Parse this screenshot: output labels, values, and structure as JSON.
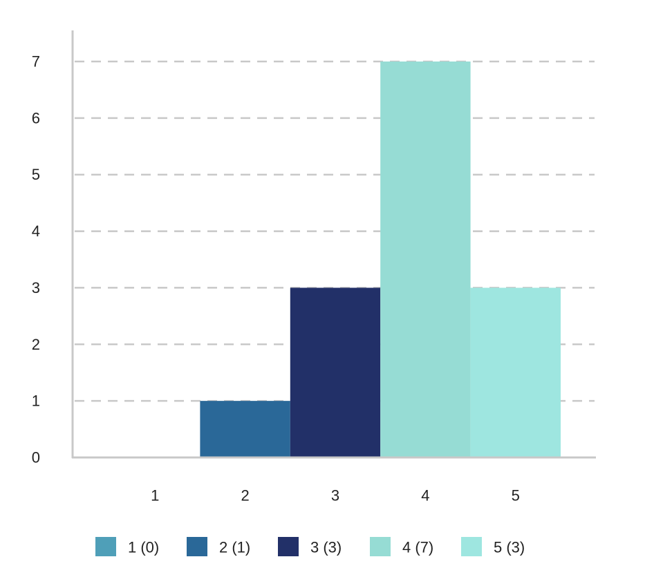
{
  "chart_data": {
    "type": "bar",
    "categories": [
      "1",
      "2",
      "3",
      "4",
      "5"
    ],
    "values": [
      0,
      1,
      3,
      7,
      3
    ],
    "colors": [
      "#4f9fb8",
      "#2a6898",
      "#223068",
      "#96dcd4",
      "#9ee6e0"
    ],
    "ylim": [
      0,
      7
    ],
    "yticks": [
      "0",
      "1",
      "2",
      "3",
      "4",
      "5",
      "6",
      "7"
    ],
    "grid": true,
    "legend": {
      "placement": "bottom",
      "entries": [
        "1 (0)",
        "2 (1)",
        "3 (3)",
        "4 (7)",
        "5 (3)"
      ]
    },
    "title": "",
    "xlabel": "",
    "ylabel": ""
  }
}
